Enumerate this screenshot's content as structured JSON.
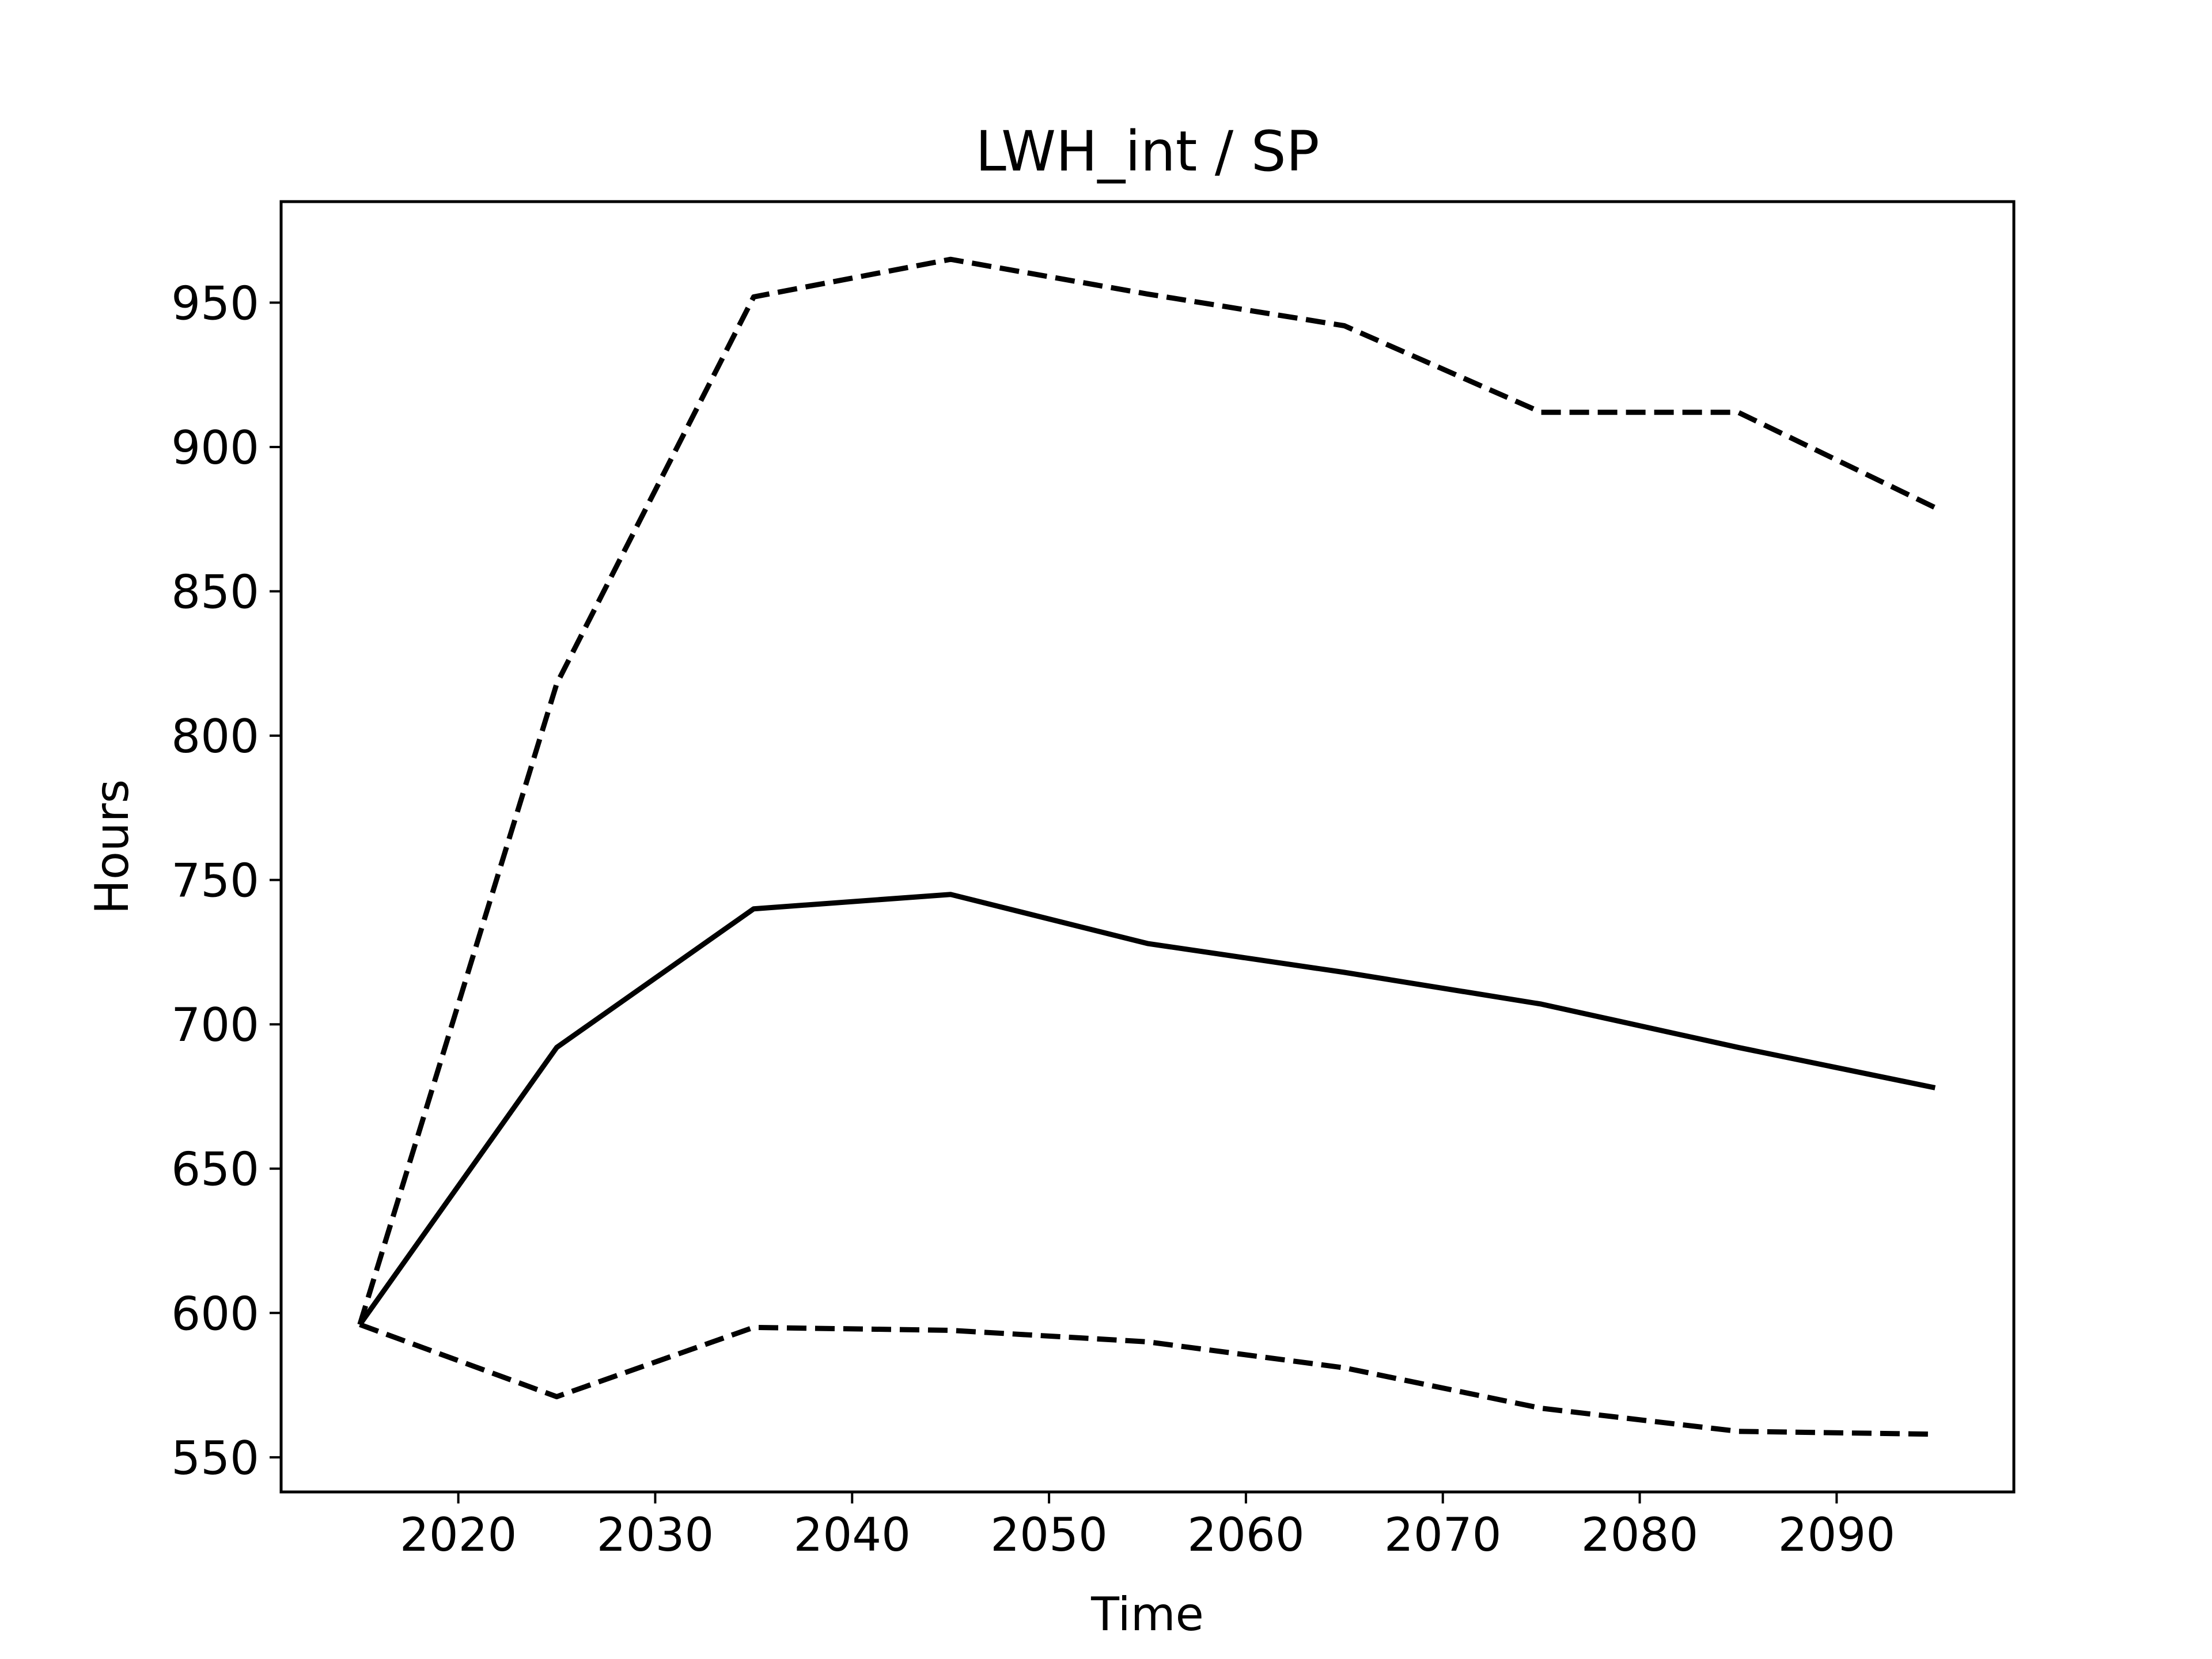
{
  "chart_data": {
    "type": "line",
    "title": "LWH_int / SP",
    "xlabel": "Time",
    "ylabel": "Hours",
    "xlim": [
      2011,
      2099
    ],
    "ylim": [
      538,
      985
    ],
    "xticks": [
      2020,
      2030,
      2040,
      2050,
      2060,
      2070,
      2080,
      2090
    ],
    "yticks": [
      550,
      600,
      650,
      700,
      750,
      800,
      850,
      900,
      950
    ],
    "grid": false,
    "x": [
      2015,
      2025,
      2035,
      2045,
      2055,
      2065,
      2075,
      2085,
      2095
    ],
    "series": [
      {
        "style": "dashed",
        "color": "#000000",
        "values": [
          596,
          818,
          952,
          965,
          953,
          942,
          912,
          912,
          879
        ]
      },
      {
        "style": "solid",
        "color": "#000000",
        "values": [
          596,
          692,
          740,
          745,
          728,
          718,
          707,
          692,
          678
        ]
      },
      {
        "style": "dashed",
        "color": "#000000",
        "values": [
          596,
          571,
          595,
          594,
          590,
          581,
          567,
          559,
          558
        ]
      }
    ]
  }
}
